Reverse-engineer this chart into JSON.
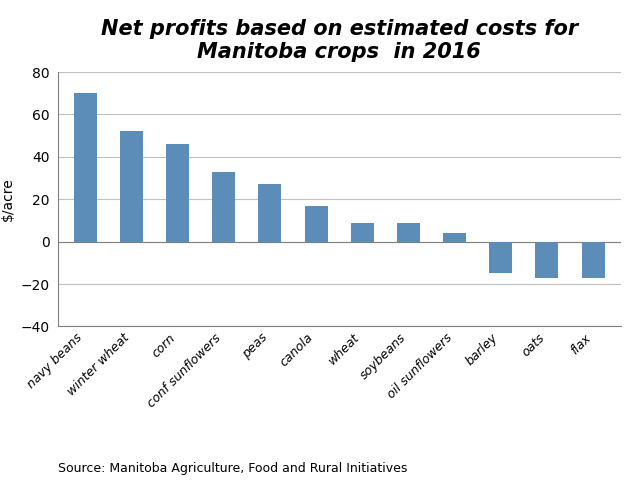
{
  "categories": [
    "navy beans",
    "winter wheat",
    "corn",
    "conf sunflowers",
    "peas",
    "canola",
    "wheat",
    "soybeans",
    "oil sunflowers",
    "barley",
    "oats",
    "flax"
  ],
  "values": [
    70,
    52,
    46,
    33,
    27,
    17,
    9,
    9,
    4,
    -15,
    -17,
    -17
  ],
  "bar_color": "#5b8db8",
  "title_line1": "Net profits based on estimated costs for",
  "title_line2": "Manitoba crops  in 2016",
  "ylabel": "$/acre",
  "ylim": [
    -40,
    80
  ],
  "yticks": [
    -40,
    -20,
    0,
    20,
    40,
    60,
    80
  ],
  "source": "Source: Manitoba Agriculture, Food and Rural Initiatives",
  "title_fontsize": 15,
  "xlabel_fontsize": 9,
  "ylabel_fontsize": 10,
  "ytick_fontsize": 10,
  "source_fontsize": 9,
  "bar_width": 0.5,
  "grid_color": "#c0c0c0",
  "spine_color": "#808080",
  "background_color": "#ffffff"
}
